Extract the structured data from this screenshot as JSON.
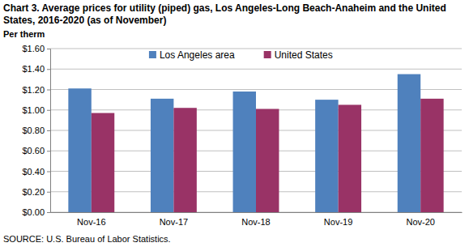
{
  "chart_data": {
    "type": "bar",
    "title": "Chart 3. Average prices for utility (piped) gas, Los Angeles-Long Beach-Anaheim and the United States, 2016-2020 (as of November)",
    "y_label": "Per therm",
    "source": "SOURCE: U.S. Bureau of Labor Statistics.",
    "categories": [
      "Nov-16",
      "Nov-17",
      "Nov-18",
      "Nov-19",
      "Nov-20"
    ],
    "series": [
      {
        "name": "Los Angeles area",
        "color": "#4f81bd",
        "values": [
          1.21,
          1.11,
          1.18,
          1.1,
          1.35
        ]
      },
      {
        "name": "United States",
        "color": "#993366",
        "values": [
          0.97,
          1.02,
          1.01,
          1.05,
          1.11
        ]
      }
    ],
    "ylim": [
      0,
      1.6
    ],
    "yticks": [
      {
        "value": 0,
        "label": "$0.00"
      },
      {
        "value": 0.2,
        "label": "$0.20"
      },
      {
        "value": 0.4,
        "label": "$0.40"
      },
      {
        "value": 0.6,
        "label": "$0.60"
      },
      {
        "value": 0.8,
        "label": "$0.80"
      },
      {
        "value": 1.0,
        "label": "$1.00"
      },
      {
        "value": 1.2,
        "label": "$1.20"
      },
      {
        "value": 1.4,
        "label": "$1.40"
      },
      {
        "value": 1.6,
        "label": "$1.60"
      }
    ],
    "grid": true,
    "legend": "top"
  }
}
